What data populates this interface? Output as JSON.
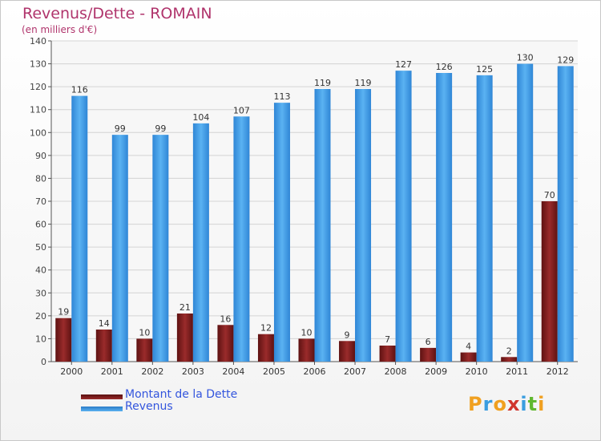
{
  "title": "Revenus/Dette - ROMAIN",
  "subtitle": "(en milliers d'€)",
  "logo": {
    "text": "Proxiti",
    "letters": [
      "P",
      "r",
      "o",
      "x",
      "i",
      "t",
      "i"
    ],
    "colors": [
      "#f0a020",
      "#3a9de0",
      "#f0a020",
      "#d0352d",
      "#3a9de0",
      "#60b830",
      "#f0a020"
    ]
  },
  "chart_data": {
    "type": "bar",
    "categories": [
      "2000",
      "2001",
      "2002",
      "2003",
      "2004",
      "2005",
      "2006",
      "2007",
      "2008",
      "2009",
      "2010",
      "2011",
      "2012"
    ],
    "series": [
      {
        "name": "Montant de la Dette",
        "color": "#7a1a1a",
        "values": [
          19,
          14,
          10,
          21,
          16,
          12,
          10,
          9,
          7,
          6,
          4,
          2,
          70
        ]
      },
      {
        "name": "Revenus",
        "color": "#3d97e0",
        "values": [
          116,
          99,
          99,
          104,
          107,
          113,
          119,
          119,
          127,
          126,
          125,
          130,
          129
        ]
      }
    ],
    "ylim": [
      0,
      140
    ],
    "yticks": [
      0,
      10,
      20,
      30,
      40,
      50,
      60,
      70,
      80,
      90,
      100,
      110,
      120,
      130,
      140
    ],
    "grid": true,
    "legend_position": "bottom-left"
  }
}
